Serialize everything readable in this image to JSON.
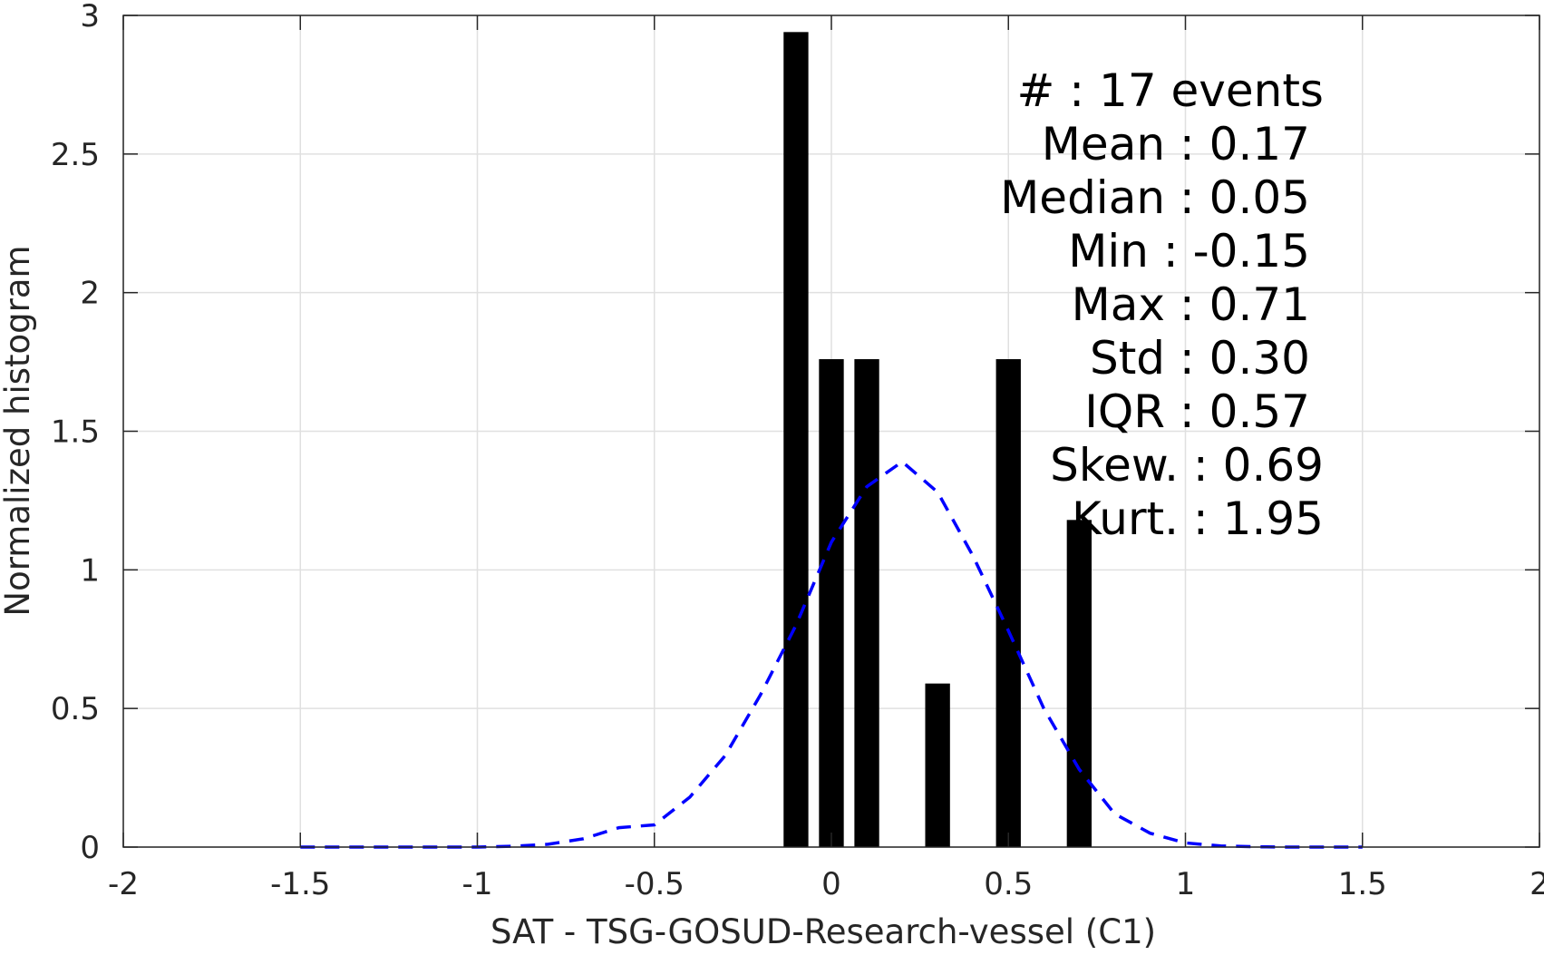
{
  "chart_data": {
    "type": "bar",
    "xlabel": "SAT - TSG-GOSUD-Research-vessel (C1)",
    "ylabel": "Normalized histogram",
    "xlim": [
      -2,
      2
    ],
    "ylim": [
      0,
      3
    ],
    "xticks": [
      -2,
      -1.5,
      -1,
      -0.5,
      0,
      0.5,
      1,
      1.5,
      2
    ],
    "xtick_labels": [
      "-2",
      "-1.5",
      "-1",
      "-0.5",
      "0",
      "0.5",
      "1",
      "1.5",
      "2"
    ],
    "yticks": [
      0,
      0.5,
      1,
      1.5,
      2,
      2.5,
      3
    ],
    "ytick_labels": [
      "0",
      "0.5",
      "1",
      "1.5",
      "2",
      "2.5",
      "3"
    ],
    "grid": true,
    "bar_color": "#000000",
    "bin_width": 0.07,
    "bars": [
      {
        "x": -0.1,
        "value": 2.94
      },
      {
        "x": 0.0,
        "value": 1.76
      },
      {
        "x": 0.1,
        "value": 1.76
      },
      {
        "x": 0.3,
        "value": 0.59
      },
      {
        "x": 0.5,
        "value": 1.76
      },
      {
        "x": 0.7,
        "value": 1.18
      }
    ],
    "fit_curve": {
      "style": "dashed",
      "color": "#0000ff",
      "x": [
        -1.5,
        -1.4,
        -1.3,
        -1.2,
        -1.1,
        -1.0,
        -0.9,
        -0.8,
        -0.7,
        -0.6,
        -0.5,
        -0.4,
        -0.3,
        -0.2,
        -0.1,
        0.0,
        0.1,
        0.2,
        0.3,
        0.4,
        0.5,
        0.6,
        0.7,
        0.8,
        0.9,
        1.0,
        1.1,
        1.2,
        1.3,
        1.4,
        1.5
      ],
      "y": [
        0.0,
        0.0,
        0.0,
        0.0,
        0.0,
        0.0,
        0.003,
        0.01,
        0.03,
        0.07,
        0.08,
        0.18,
        0.33,
        0.55,
        0.8,
        1.1,
        1.3,
        1.39,
        1.28,
        1.05,
        0.78,
        0.5,
        0.28,
        0.12,
        0.05,
        0.015,
        0.004,
        0.001,
        0.0,
        0.0,
        0.0
      ]
    },
    "stats_lines": [
      "#  : 17 events",
      "Mean : 0.17",
      "Median : 0.05",
      "Min : -0.15",
      "Max : 0.71",
      "Std : 0.30",
      "IQR : 0.57",
      "Skew. : 0.69",
      "Kurt. : 1.95"
    ]
  }
}
